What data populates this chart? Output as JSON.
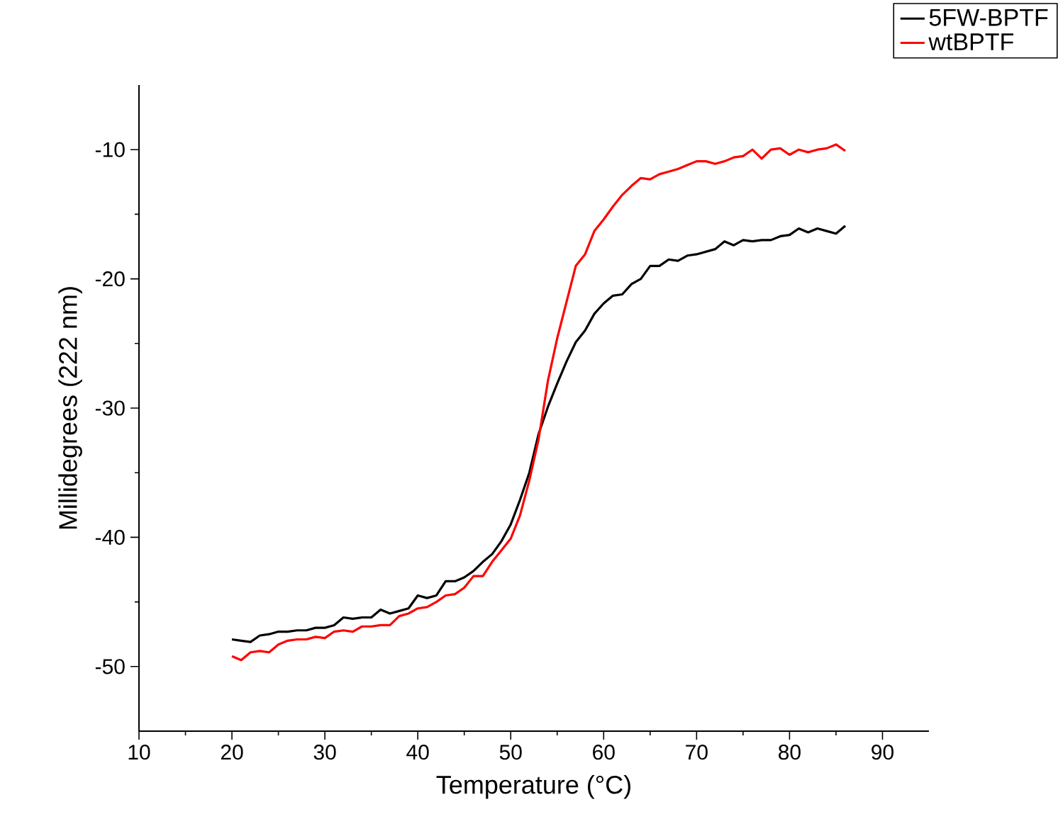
{
  "chart_data": {
    "type": "line",
    "xlabel": "Temperature (°C)",
    "ylabel": "Millidegrees (222 nm)",
    "xlim": [
      10,
      95
    ],
    "ylim": [
      -55,
      -5
    ],
    "xticks": [
      10,
      20,
      30,
      40,
      50,
      60,
      70,
      80,
      90
    ],
    "yticks": [
      -50,
      -40,
      -30,
      -20,
      -10
    ],
    "legend": "top right",
    "grid": false,
    "line_style": "solid",
    "x": [
      20,
      21,
      22,
      23,
      24,
      25,
      26,
      27,
      28,
      29,
      30,
      31,
      32,
      33,
      34,
      35,
      36,
      37,
      38,
      39,
      40,
      41,
      42,
      43,
      44,
      45,
      46,
      47,
      48,
      49,
      50,
      51,
      52,
      53,
      54,
      55,
      56,
      57,
      58,
      59,
      60,
      61,
      62,
      63,
      64,
      65,
      66,
      67,
      68,
      69,
      70,
      71,
      72,
      73,
      74,
      75,
      76,
      77,
      78,
      79,
      80,
      81,
      82,
      83,
      84,
      85,
      86
    ],
    "series": [
      {
        "name": "5FW-BPTF",
        "color": "#000000",
        "values": [
          -47.9,
          -48.0,
          -48.1,
          -47.6,
          -47.5,
          -47.3,
          -47.3,
          -47.2,
          -47.2,
          -47.0,
          -47.0,
          -46.8,
          -46.2,
          -46.3,
          -46.2,
          -46.2,
          -45.6,
          -45.9,
          -45.7,
          -45.5,
          -44.5,
          -44.7,
          -44.5,
          -43.4,
          -43.4,
          -43.1,
          -42.6,
          -41.9,
          -41.3,
          -40.3,
          -39.0,
          -37.1,
          -35.0,
          -32.0,
          -29.9,
          -28.1,
          -26.4,
          -24.9,
          -24.0,
          -22.7,
          -21.9,
          -21.3,
          -21.2,
          -20.4,
          -20.0,
          -19.0,
          -19.0,
          -18.5,
          -18.6,
          -18.2,
          -18.1,
          -17.9,
          -17.7,
          -17.1,
          -17.4,
          -17.0,
          -17.1,
          -17.0,
          -17.0,
          -16.7,
          -16.6,
          -16.1,
          -16.4,
          -16.1,
          -16.3,
          -16.5,
          -15.9
        ]
      },
      {
        "name": "wtBPTF",
        "color": "#ff0000",
        "values": [
          -49.2,
          -49.5,
          -48.9,
          -48.8,
          -48.9,
          -48.3,
          -48.0,
          -47.9,
          -47.9,
          -47.7,
          -47.8,
          -47.3,
          -47.2,
          -47.3,
          -46.9,
          -46.9,
          -46.8,
          -46.8,
          -46.1,
          -45.9,
          -45.5,
          -45.4,
          -45.0,
          -44.5,
          -44.4,
          -43.9,
          -43.0,
          -43.0,
          -41.9,
          -41.0,
          -40.1,
          -38.3,
          -35.6,
          -32.4,
          -27.9,
          -24.6,
          -21.8,
          -19.0,
          -18.1,
          -16.3,
          -15.4,
          -14.4,
          -13.5,
          -12.8,
          -12.2,
          -12.3,
          -11.9,
          -11.7,
          -11.5,
          -11.2,
          -10.9,
          -10.9,
          -11.1,
          -10.9,
          -10.6,
          -10.5,
          -10.0,
          -10.7,
          -10.0,
          -9.9,
          -10.4,
          -10.0,
          -10.2,
          -10.0,
          -9.9,
          -9.6,
          -10.1
        ]
      }
    ]
  }
}
